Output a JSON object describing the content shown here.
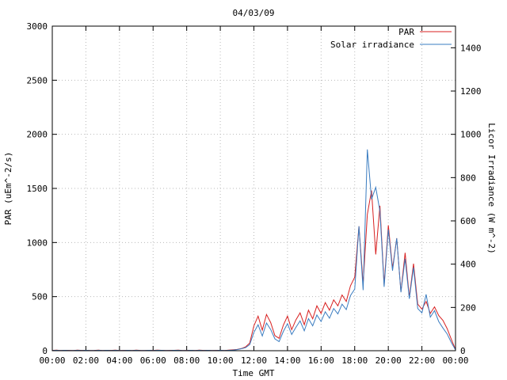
{
  "chart_data": {
    "type": "line",
    "title": "04/03/09",
    "xlabel": "Time GMT",
    "ylabel_left": "PAR (uEm^-2/s)",
    "ylabel_right": "Licor Irradiance (W m^-2)",
    "grid": true,
    "legend_position": "top-right-inside",
    "axes": {
      "x": {
        "min": 0,
        "max": 24,
        "tick_values": [
          0,
          2,
          4,
          6,
          8,
          10,
          12,
          14,
          16,
          18,
          20,
          22,
          24
        ],
        "tick_labels": [
          "00:00",
          "02:00",
          "04:00",
          "06:00",
          "08:00",
          "10:00",
          "12:00",
          "14:00",
          "16:00",
          "18:00",
          "20:00",
          "22:00",
          "00:00"
        ]
      },
      "left": {
        "min": 0,
        "max": 3000,
        "tick_values": [
          0,
          500,
          1000,
          1500,
          2000,
          2500,
          3000
        ],
        "tick_labels": [
          "0",
          "500",
          "1000",
          "1500",
          "2000",
          "2500",
          "3000"
        ]
      },
      "right": {
        "min": 0,
        "max": 1500,
        "tick_values": [
          0,
          200,
          400,
          600,
          800,
          1000,
          1200,
          1400
        ],
        "tick_labels": [
          "0",
          "200",
          "400",
          "600",
          "800",
          "1000",
          "1200",
          "1400"
        ]
      }
    },
    "x_hours": [
      0,
      0.25,
      0.5,
      0.75,
      1,
      1.25,
      1.5,
      1.75,
      2,
      2.25,
      2.5,
      2.75,
      3,
      3.25,
      3.5,
      3.75,
      4,
      4.25,
      4.5,
      4.75,
      5,
      5.25,
      5.5,
      5.75,
      6,
      6.25,
      6.5,
      6.75,
      7,
      7.25,
      7.5,
      7.75,
      8,
      8.25,
      8.5,
      8.75,
      9,
      9.25,
      9.5,
      9.75,
      10,
      10.25,
      10.5,
      10.75,
      11,
      11.25,
      11.5,
      11.75,
      12,
      12.25,
      12.5,
      12.75,
      13,
      13.25,
      13.5,
      13.75,
      14,
      14.25,
      14.5,
      14.75,
      15,
      15.25,
      15.5,
      15.75,
      16,
      16.25,
      16.5,
      16.75,
      17,
      17.25,
      17.5,
      17.75,
      18,
      18.25,
      18.5,
      18.75,
      19,
      19.25,
      19.5,
      19.75,
      20,
      20.25,
      20.5,
      20.75,
      21,
      21.25,
      21.5,
      21.75,
      22,
      22.25,
      22.5,
      22.75,
      23,
      23.25,
      23.5,
      23.75,
      24
    ],
    "series": [
      {
        "name": "PAR",
        "axis": "left",
        "color": "#d82020",
        "values": [
          3,
          5,
          2,
          4,
          3,
          2,
          5,
          3,
          4,
          2,
          3,
          5,
          2,
          4,
          3,
          5,
          2,
          3,
          4,
          2,
          5,
          3,
          2,
          4,
          3,
          5,
          4,
          2,
          3,
          4,
          5,
          2,
          3,
          4,
          2,
          5,
          3,
          4,
          2,
          3,
          4,
          2,
          5,
          8,
          12,
          20,
          35,
          70,
          230,
          320,
          190,
          335,
          260,
          140,
          115,
          235,
          320,
          195,
          285,
          350,
          240,
          375,
          295,
          415,
          345,
          445,
          375,
          470,
          415,
          515,
          455,
          600,
          680,
          1150,
          620,
          1260,
          1480,
          890,
          1340,
          610,
          1160,
          760,
          1040,
          545,
          905,
          495,
          805,
          430,
          385,
          455,
          345,
          405,
          325,
          280,
          205,
          105,
          12
        ]
      },
      {
        "name": "Solar irradiance",
        "axis": "right",
        "color": "#3a7cc0",
        "values": [
          1,
          2,
          1,
          2,
          1,
          1,
          2,
          1,
          2,
          1,
          1,
          2,
          1,
          2,
          1,
          2,
          1,
          1,
          2,
          1,
          2,
          1,
          1,
          2,
          1,
          2,
          2,
          1,
          1,
          2,
          2,
          1,
          1,
          2,
          1,
          2,
          1,
          2,
          1,
          1,
          2,
          1,
          2,
          3,
          5,
          9,
          14,
          28,
          85,
          120,
          68,
          128,
          98,
          55,
          42,
          88,
          125,
          75,
          108,
          138,
          92,
          148,
          115,
          165,
          135,
          180,
          150,
          195,
          170,
          215,
          190,
          255,
          285,
          575,
          280,
          930,
          700,
          755,
          645,
          295,
          560,
          370,
          520,
          270,
          425,
          240,
          385,
          195,
          175,
          260,
          155,
          185,
          135,
          105,
          78,
          38,
          4
        ]
      }
    ]
  },
  "colors": {
    "background": "#ffffff",
    "grid": "#b9b9b9",
    "axis": "#000000",
    "par_line": "#d82020",
    "solar_line": "#3a7cc0"
  }
}
